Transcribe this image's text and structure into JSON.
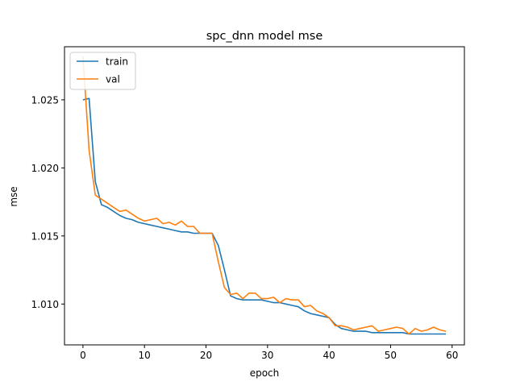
{
  "chart_data": {
    "type": "line",
    "title": "spc_dnn model mse",
    "xlabel": "epoch",
    "ylabel": "mse",
    "xlim": [
      -3,
      62
    ],
    "ylim": [
      1.007,
      1.0289
    ],
    "xticks": [
      0,
      10,
      20,
      30,
      40,
      50,
      60
    ],
    "xtick_labels": [
      "0",
      "10",
      "20",
      "30",
      "40",
      "50",
      "60"
    ],
    "yticks": [
      1.01,
      1.015,
      1.02,
      1.025
    ],
    "ytick_labels": [
      "1.010",
      "1.015",
      "1.020",
      "1.025"
    ],
    "grid": false,
    "legend_position": "upper-left",
    "series": [
      {
        "name": "train",
        "color": "#1f77b4",
        "x": [
          0,
          1,
          2,
          3,
          4,
          5,
          6,
          7,
          8,
          9,
          10,
          11,
          12,
          13,
          14,
          15,
          16,
          17,
          18,
          19,
          20,
          21,
          22,
          23,
          24,
          25,
          26,
          27,
          28,
          29,
          30,
          31,
          32,
          33,
          34,
          35,
          36,
          37,
          38,
          39,
          40,
          41,
          42,
          43,
          44,
          45,
          46,
          47,
          48,
          49,
          50,
          51,
          52,
          53,
          54,
          55,
          56,
          57,
          58,
          59
        ],
        "values": [
          1.025,
          1.0251,
          1.019,
          1.0173,
          1.0171,
          1.0168,
          1.0165,
          1.0163,
          1.0162,
          1.016,
          1.0159,
          1.0158,
          1.0157,
          1.0156,
          1.0155,
          1.0154,
          1.0153,
          1.0153,
          1.0152,
          1.0152,
          1.0152,
          1.0152,
          1.0143,
          1.0125,
          1.0106,
          1.0104,
          1.0103,
          1.0103,
          1.0103,
          1.0103,
          1.0102,
          1.0101,
          1.0101,
          1.01,
          1.0099,
          1.0098,
          1.0095,
          1.0093,
          1.0092,
          1.0091,
          1.009,
          1.0085,
          1.0082,
          1.0081,
          1.008,
          1.008,
          1.008,
          1.0079,
          1.0079,
          1.0079,
          1.0079,
          1.0079,
          1.0079,
          1.0078,
          1.0078,
          1.0078,
          1.0078,
          1.0078,
          1.0078,
          1.0078
        ]
      },
      {
        "name": "val",
        "color": "#ff7f0e",
        "x": [
          0,
          1,
          2,
          3,
          4,
          5,
          6,
          7,
          8,
          9,
          10,
          11,
          12,
          13,
          14,
          15,
          16,
          17,
          18,
          19,
          20,
          21,
          22,
          23,
          24,
          25,
          26,
          27,
          28,
          29,
          30,
          31,
          32,
          33,
          34,
          35,
          36,
          37,
          38,
          39,
          40,
          41,
          42,
          43,
          44,
          45,
          46,
          47,
          48,
          49,
          50,
          51,
          52,
          53,
          54,
          55,
          56,
          57,
          58,
          59
        ],
        "values": [
          1.0282,
          1.0213,
          1.018,
          1.0177,
          1.0174,
          1.0171,
          1.0168,
          1.0169,
          1.0166,
          1.0163,
          1.0161,
          1.0162,
          1.0163,
          1.0159,
          1.016,
          1.0158,
          1.0161,
          1.0157,
          1.0157,
          1.0152,
          1.0152,
          1.0152,
          1.0131,
          1.0112,
          1.0107,
          1.0108,
          1.0104,
          1.0108,
          1.0108,
          1.0104,
          1.0104,
          1.0105,
          1.0101,
          1.0104,
          1.0103,
          1.0103,
          1.0098,
          1.0099,
          1.0095,
          1.0093,
          1.009,
          1.0084,
          1.0084,
          1.0083,
          1.0081,
          1.0082,
          1.0083,
          1.0084,
          1.008,
          1.0081,
          1.0082,
          1.0083,
          1.0082,
          1.0078,
          1.0082,
          1.008,
          1.0081,
          1.0083,
          1.0081,
          1.008
        ]
      }
    ]
  }
}
